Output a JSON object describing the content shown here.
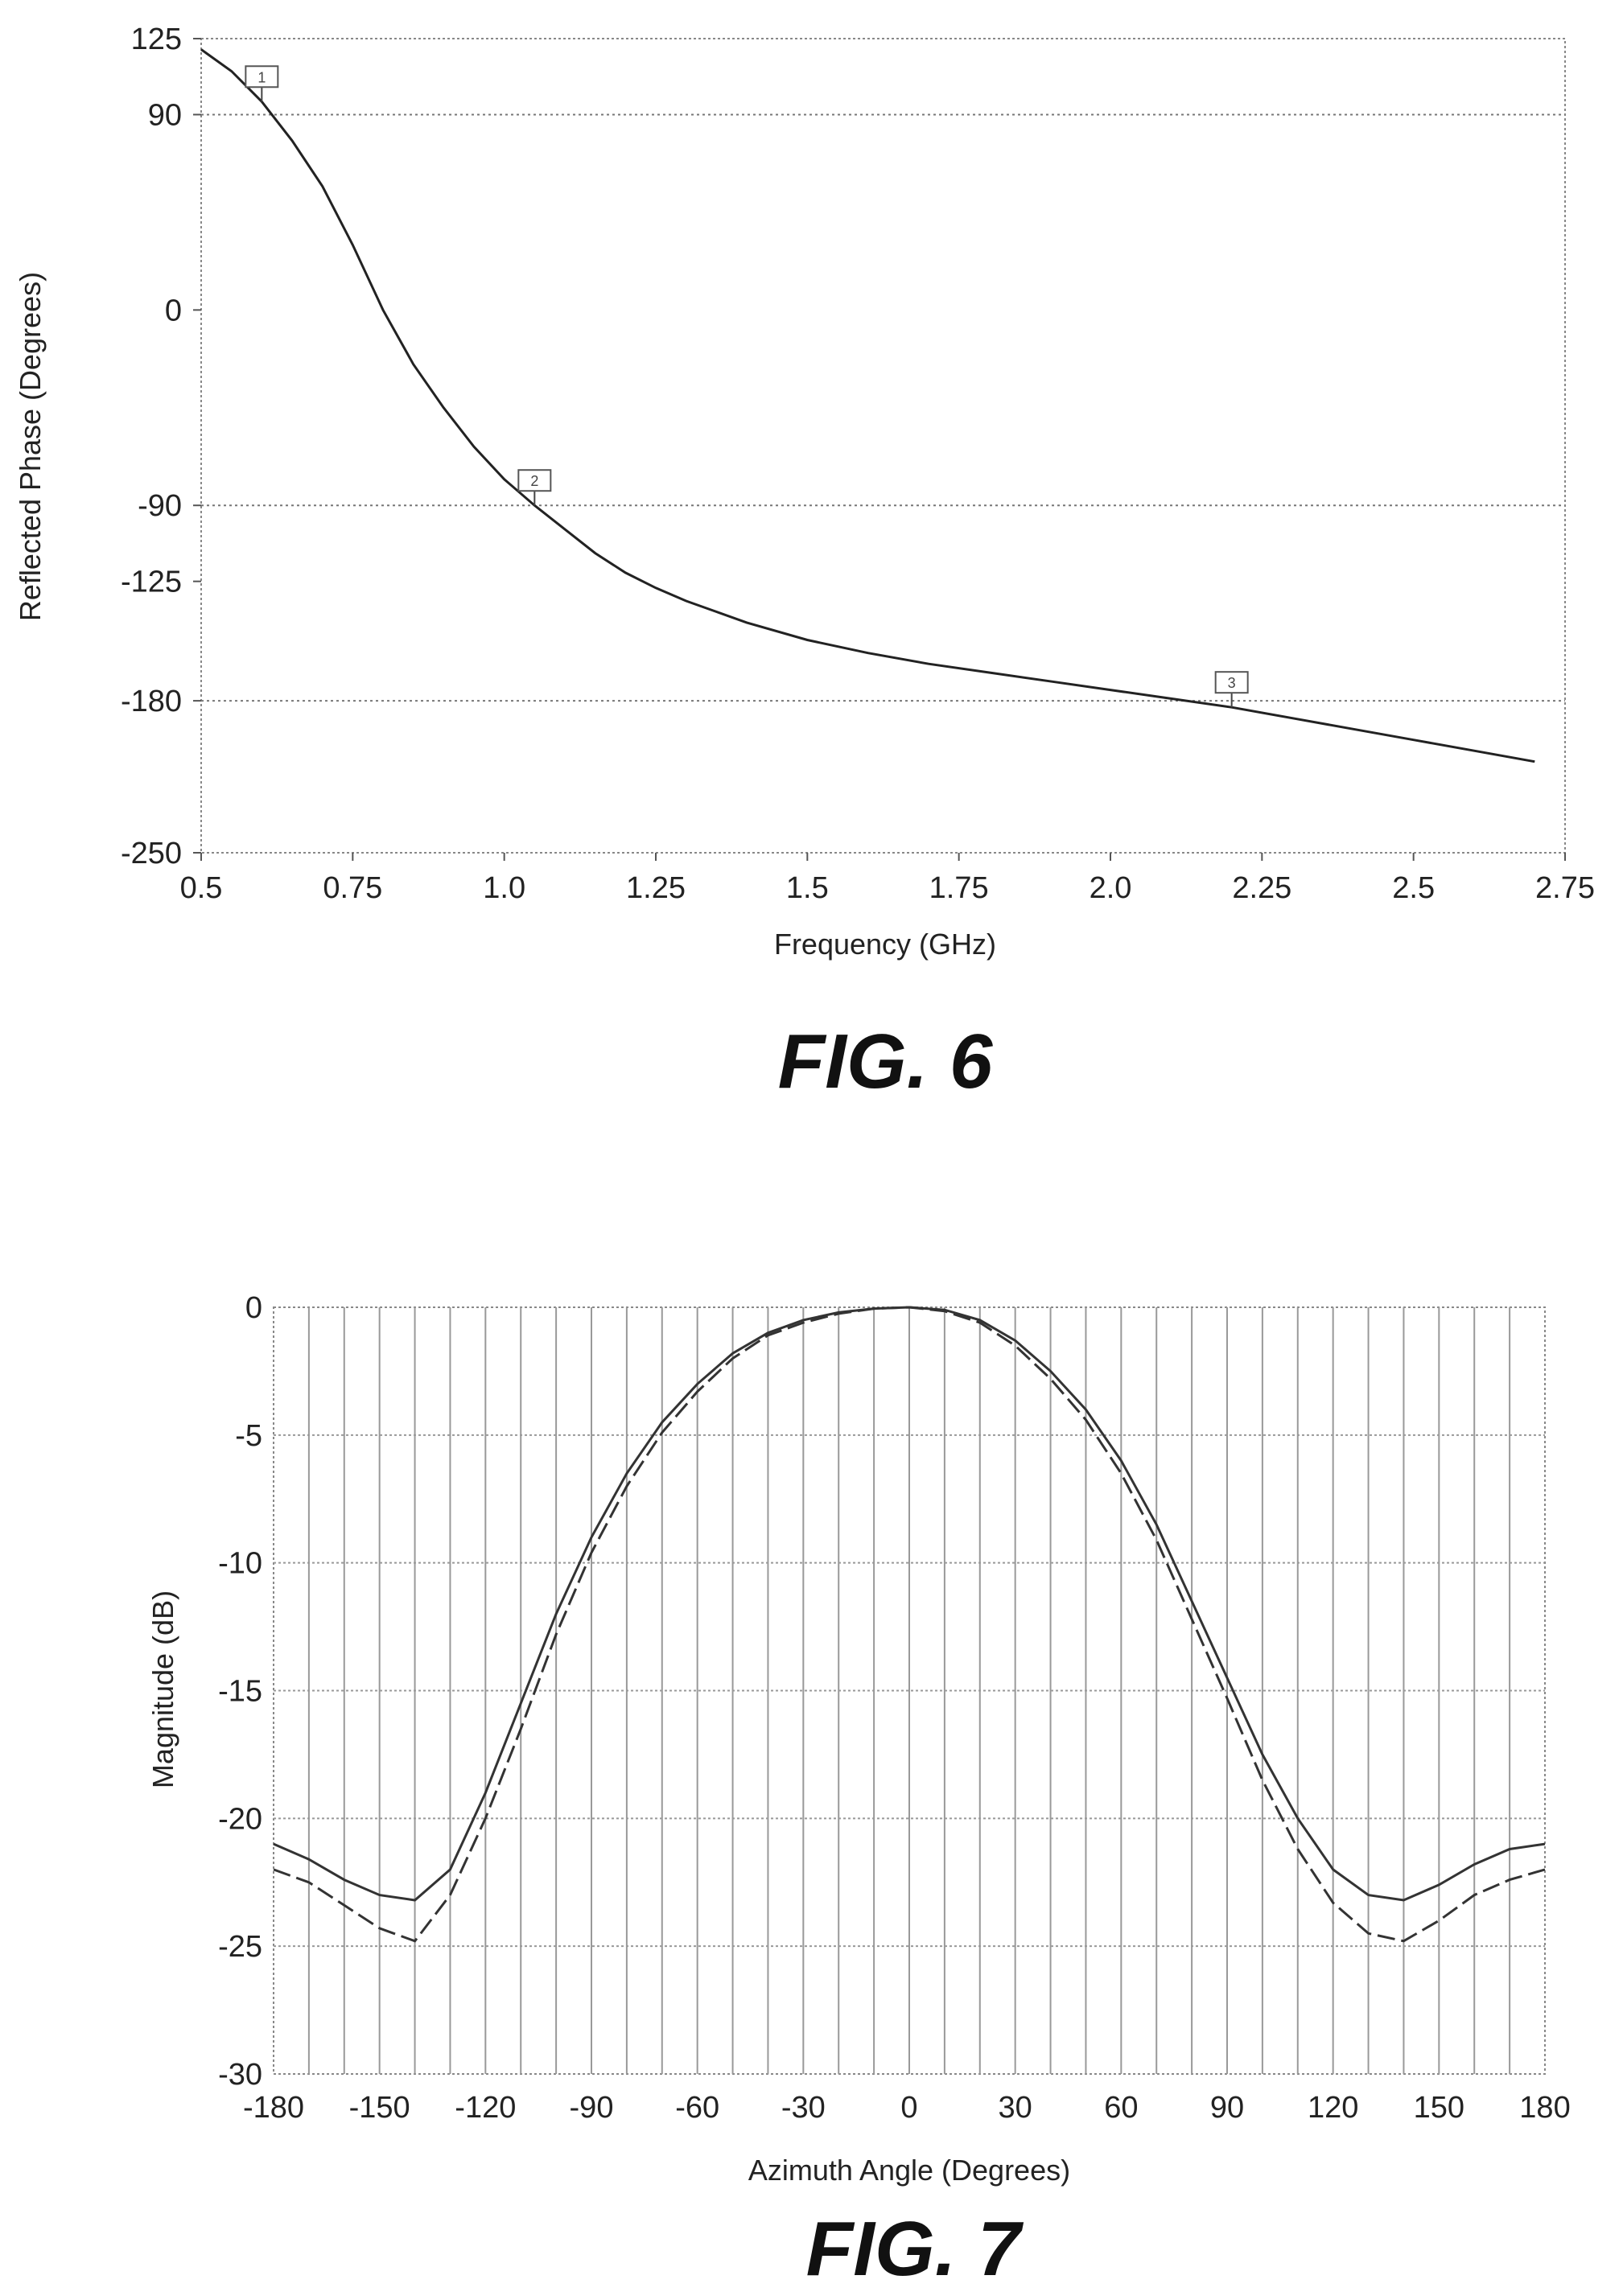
{
  "chart_data": [
    {
      "type": "line",
      "figure_label": "FIG. 6",
      "xlabel": "Frequency (GHz)",
      "ylabel": "Reflected Phase (Degrees)",
      "xlim": [
        0.5,
        2.75
      ],
      "ylim": [
        -250,
        125
      ],
      "x_ticks": [
        "0.5",
        "0.75",
        "1.0",
        "1.25",
        "1.5",
        "1.75",
        "2.0",
        "2.25",
        "2.5",
        "2.75"
      ],
      "y_ticks": [
        "125",
        "90",
        "0",
        "-90",
        "-125",
        "-180",
        "-250"
      ],
      "y_grid": [
        90,
        -90,
        -180
      ],
      "series": [
        {
          "x": [
            0.5,
            0.55,
            0.6,
            0.65,
            0.7,
            0.75,
            0.8,
            0.85,
            0.9,
            0.95,
            1.0,
            1.05,
            1.1,
            1.15,
            1.2,
            1.25,
            1.3,
            1.4,
            1.5,
            1.6,
            1.7,
            1.8,
            1.9,
            2.0,
            2.1,
            2.2,
            2.3,
            2.4,
            2.5,
            2.6,
            2.7
          ],
          "y": [
            120,
            110,
            96,
            78,
            57,
            30,
            0,
            -25,
            -45,
            -63,
            -78,
            -90,
            -101,
            -112,
            -121,
            -128,
            -134,
            -144,
            -152,
            -158,
            -163,
            -167,
            -171,
            -175,
            -179,
            -183,
            -188,
            -193,
            -198,
            -203,
            -208
          ]
        }
      ],
      "markers": [
        {
          "x": 0.6,
          "y": 96,
          "label": "1"
        },
        {
          "x": 1.05,
          "y": -90,
          "label": "2"
        },
        {
          "x": 2.2,
          "y": -183,
          "label": "3"
        }
      ]
    },
    {
      "type": "line",
      "figure_label": "FIG. 7",
      "xlabel": "Azimuth Angle (Degrees)",
      "ylabel": "Magnitude (dB)",
      "xlim": [
        -180,
        180
      ],
      "ylim": [
        -30,
        0
      ],
      "x_ticks": [
        "-180",
        "-150",
        "-120",
        "-90",
        "-60",
        "-30",
        "0",
        "30",
        "60",
        "90",
        "120",
        "150",
        "180"
      ],
      "y_ticks": [
        "0",
        "-5",
        "-10",
        "-15",
        "-20",
        "-25",
        "-30"
      ],
      "series": [
        {
          "style": "solid",
          "x": [
            -180,
            -170,
            -160,
            -150,
            -140,
            -130,
            -120,
            -110,
            -100,
            -90,
            -80,
            -70,
            -60,
            -50,
            -40,
            -30,
            -20,
            -10,
            0,
            10,
            20,
            30,
            40,
            50,
            60,
            70,
            80,
            90,
            100,
            110,
            120,
            130,
            140,
            150,
            160,
            170,
            180
          ],
          "y": [
            -21,
            -21.6,
            -22.4,
            -23.0,
            -23.2,
            -22.0,
            -19.0,
            -15.5,
            -12.0,
            -9.0,
            -6.5,
            -4.5,
            -3.0,
            -1.8,
            -1.0,
            -0.5,
            -0.2,
            -0.05,
            0,
            -0.1,
            -0.5,
            -1.3,
            -2.5,
            -4.0,
            -6.0,
            -8.5,
            -11.5,
            -14.5,
            -17.5,
            -20.0,
            -22.0,
            -23.0,
            -23.2,
            -22.6,
            -21.8,
            -21.2,
            -21.0
          ]
        },
        {
          "style": "dashed",
          "x": [
            -180,
            -170,
            -160,
            -150,
            -140,
            -130,
            -120,
            -110,
            -100,
            -90,
            -80,
            -70,
            -60,
            -50,
            -40,
            -30,
            -20,
            -10,
            0,
            10,
            20,
            30,
            40,
            50,
            60,
            70,
            80,
            90,
            100,
            110,
            120,
            130,
            140,
            150,
            160,
            170,
            180
          ],
          "y": [
            -22,
            -22.5,
            -23.4,
            -24.3,
            -24.8,
            -23.0,
            -20.0,
            -16.5,
            -12.8,
            -9.6,
            -7.0,
            -4.9,
            -3.3,
            -2.0,
            -1.1,
            -0.6,
            -0.25,
            -0.05,
            0,
            -0.15,
            -0.6,
            -1.5,
            -2.8,
            -4.4,
            -6.5,
            -9.1,
            -12.2,
            -15.3,
            -18.5,
            -21.2,
            -23.3,
            -24.5,
            -24.8,
            -24.0,
            -23.0,
            -22.4,
            -22.0
          ]
        }
      ]
    }
  ]
}
